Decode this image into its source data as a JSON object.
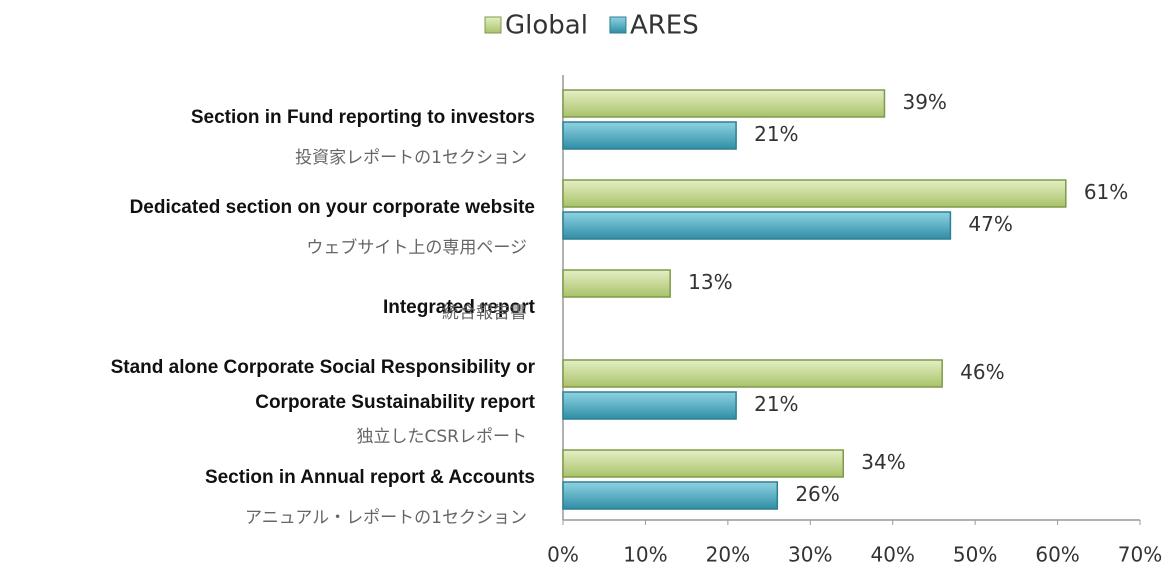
{
  "chart_data": {
    "type": "bar",
    "orientation": "horizontal",
    "categories": [
      [
        "Section in Fund reporting to investors"
      ],
      [
        "Dedicated section on your corporate website"
      ],
      [
        "Integrated report"
      ],
      [
        "Stand alone Corporate Social Responsibility or",
        "Corporate Sustainability report"
      ],
      [
        "Section in Annual report & Accounts"
      ]
    ],
    "category_subtitles": [
      "投資家レポートの1セクション",
      "ウェブサイト上の専用ページ",
      "統合報告書",
      "独立したCSRレポート",
      "アニュアル・レポートの1セクション"
    ],
    "series": [
      {
        "name": "Global",
        "color": "#c4d88c",
        "values": [
          39,
          61,
          13,
          46,
          34
        ],
        "value_labels": [
          "39%",
          "61%",
          "13%",
          "46%",
          "34%"
        ]
      },
      {
        "name": "ARES",
        "color": "#4bacc6",
        "values": [
          21,
          47,
          null,
          21,
          26
        ],
        "value_labels": [
          "21%",
          "47%",
          null,
          "21%",
          "26%"
        ]
      }
    ],
    "xlim": [
      0,
      70
    ],
    "xticks": [
      {
        "value": 0,
        "label": "0%"
      },
      {
        "value": 10,
        "label": "10%"
      },
      {
        "value": 20,
        "label": "20%"
      },
      {
        "value": 30,
        "label": "30%"
      },
      {
        "value": 40,
        "label": "40%"
      },
      {
        "value": 50,
        "label": "50%"
      },
      {
        "value": 60,
        "label": "60%"
      },
      {
        "value": 70,
        "label": "70%"
      }
    ],
    "legend": "top"
  }
}
